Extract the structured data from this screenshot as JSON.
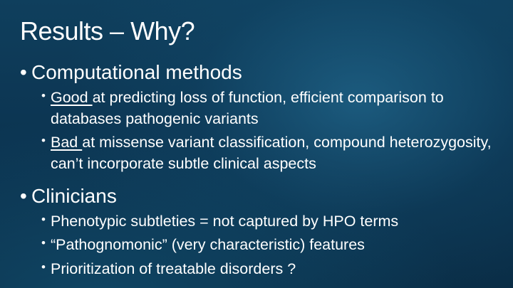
{
  "slide": {
    "title": "Results – Why?",
    "computational": {
      "heading": "Computational methods",
      "good_keyword": "Good ",
      "good_rest": "at predicting loss of function, efficient comparison to databases pathogenic variants",
      "bad_keyword": "Bad ",
      "bad_rest": "at missense variant classification, compound heterozygosity, can’t incorporate subtle clinical aspects"
    },
    "clinicians": {
      "heading": "Clinicians",
      "items": [
        "Phenotypic subtleties = not captured by HPO terms",
        "“Pathognomonic” (very characteristic) features",
        "Prioritization of treatable disorders ?"
      ]
    }
  }
}
